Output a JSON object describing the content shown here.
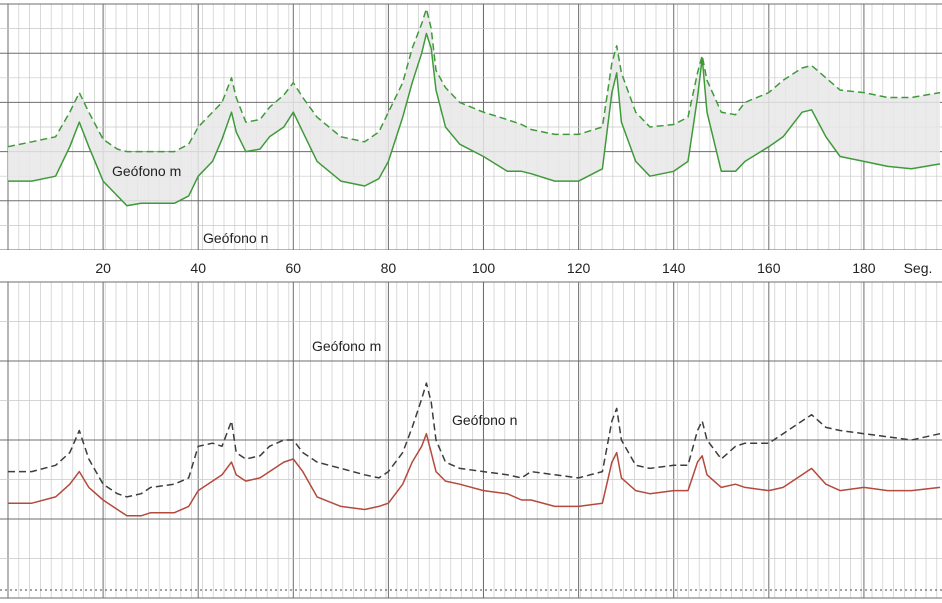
{
  "colors": {
    "green": "#3f9a3a",
    "red": "#b4493c",
    "dark": "#3a3f3a",
    "grid_minor": "#c9c9c9",
    "grid_major": "#6e6e6e",
    "band": "#e7e7e7"
  },
  "chart_data": [
    {
      "type": "line",
      "grid": true,
      "xlim": [
        0,
        196
      ],
      "x_ticks": [
        "20",
        "40",
        "60",
        "80",
        "100",
        "120",
        "140",
        "160",
        "180"
      ],
      "x_unit": "Seg.",
      "labels": {
        "m": "Geófono m",
        "n": "Geófono n"
      },
      "x": [
        0,
        5,
        10,
        13,
        15,
        17,
        20,
        23,
        25,
        28,
        30,
        35,
        38,
        40,
        43,
        45,
        47,
        48,
        50,
        53,
        55,
        58,
        60,
        62,
        65,
        70,
        75,
        78,
        80,
        83,
        85,
        87,
        88,
        89,
        90,
        92,
        95,
        100,
        105,
        108,
        110,
        115,
        120,
        125,
        127,
        128,
        129,
        132,
        135,
        140,
        143,
        145,
        146,
        147,
        150,
        153,
        155,
        160,
        163,
        167,
        169,
        172,
        175,
        180,
        185,
        190,
        196
      ],
      "series": [
        {
          "name": "Geófono m",
          "style": "dashed",
          "values": [
            4.2,
            4.4,
            4.6,
            5.6,
            6.4,
            5.6,
            4.5,
            4.1,
            4.0,
            4.0,
            4.0,
            4.0,
            4.3,
            5.0,
            5.6,
            6.0,
            7.0,
            6.2,
            5.2,
            5.3,
            5.8,
            6.3,
            6.8,
            6.2,
            5.4,
            4.6,
            4.4,
            4.8,
            5.6,
            6.8,
            8.2,
            9.2,
            9.8,
            9.0,
            7.3,
            6.6,
            6.0,
            5.6,
            5.3,
            5.1,
            4.9,
            4.7,
            4.7,
            5.0,
            7.6,
            8.3,
            7.2,
            5.6,
            5.0,
            5.1,
            5.4,
            7.2,
            7.9,
            6.9,
            5.6,
            5.5,
            6.0,
            6.4,
            6.9,
            7.4,
            7.5,
            7.0,
            6.5,
            6.4,
            6.2,
            6.2,
            6.4
          ]
        },
        {
          "name": "Geófono n",
          "style": "solid",
          "values": [
            2.8,
            2.8,
            3.0,
            4.2,
            5.2,
            4.2,
            2.8,
            2.2,
            1.8,
            1.9,
            1.9,
            1.9,
            2.2,
            3.0,
            3.6,
            4.5,
            5.6,
            4.8,
            4.0,
            4.1,
            4.6,
            5.0,
            5.6,
            4.8,
            3.6,
            2.8,
            2.6,
            2.9,
            3.6,
            5.4,
            6.8,
            8.0,
            8.8,
            8.2,
            6.5,
            5.0,
            4.3,
            3.8,
            3.2,
            3.2,
            3.1,
            2.8,
            2.8,
            3.3,
            6.4,
            7.2,
            5.2,
            3.6,
            3.0,
            3.2,
            3.6,
            6.2,
            7.8,
            5.6,
            3.2,
            3.2,
            3.6,
            4.2,
            4.6,
            5.6,
            5.7,
            4.6,
            3.8,
            3.6,
            3.4,
            3.3,
            3.5
          ]
        }
      ]
    },
    {
      "type": "line",
      "grid": true,
      "xlim": [
        0,
        196
      ],
      "labels": {
        "m": "Geófono m",
        "n": "Geófono n"
      },
      "x": [
        0,
        5,
        10,
        13,
        15,
        17,
        20,
        23,
        25,
        28,
        30,
        35,
        38,
        40,
        43,
        45,
        47,
        48,
        50,
        53,
        55,
        58,
        60,
        62,
        65,
        70,
        75,
        78,
        80,
        83,
        85,
        87,
        88,
        89,
        90,
        92,
        95,
        100,
        105,
        108,
        110,
        115,
        120,
        125,
        127,
        128,
        129,
        132,
        135,
        140,
        143,
        145,
        146,
        147,
        150,
        153,
        155,
        160,
        163,
        167,
        169,
        172,
        175,
        180,
        185,
        190,
        196
      ],
      "series": [
        {
          "name": "Geófono m",
          "style": "dashed",
          "values": [
            4.0,
            4.0,
            4.2,
            4.6,
            5.3,
            4.4,
            3.6,
            3.3,
            3.2,
            3.3,
            3.5,
            3.6,
            3.8,
            4.8,
            4.9,
            4.8,
            5.6,
            4.6,
            4.4,
            4.5,
            4.8,
            5.0,
            5.0,
            4.6,
            4.3,
            4.1,
            3.9,
            3.8,
            4.0,
            4.6,
            5.4,
            6.3,
            6.8,
            6.2,
            5.0,
            4.3,
            4.1,
            4.0,
            3.9,
            3.8,
            4.0,
            3.9,
            3.8,
            4.0,
            5.6,
            6.0,
            5.0,
            4.2,
            4.1,
            4.2,
            4.2,
            5.3,
            5.6,
            5.0,
            4.4,
            4.8,
            4.9,
            4.9,
            5.2,
            5.6,
            5.8,
            5.4,
            5.3,
            5.2,
            5.1,
            5.0,
            5.2
          ]
        },
        {
          "name": "Geófono n",
          "style": "solid",
          "values": [
            3.0,
            3.0,
            3.2,
            3.6,
            4.0,
            3.5,
            3.1,
            2.8,
            2.6,
            2.6,
            2.7,
            2.7,
            2.9,
            3.4,
            3.7,
            3.9,
            4.3,
            3.9,
            3.7,
            3.8,
            4.0,
            4.3,
            4.4,
            4.0,
            3.2,
            2.9,
            2.8,
            2.9,
            3.0,
            3.6,
            4.3,
            4.8,
            5.2,
            4.6,
            4.0,
            3.7,
            3.6,
            3.4,
            3.3,
            3.1,
            3.1,
            2.9,
            2.9,
            3.0,
            4.3,
            4.6,
            3.8,
            3.4,
            3.3,
            3.4,
            3.4,
            4.3,
            4.5,
            3.9,
            3.5,
            3.6,
            3.5,
            3.4,
            3.5,
            3.9,
            4.1,
            3.6,
            3.4,
            3.5,
            3.4,
            3.4,
            3.5
          ]
        }
      ]
    }
  ]
}
